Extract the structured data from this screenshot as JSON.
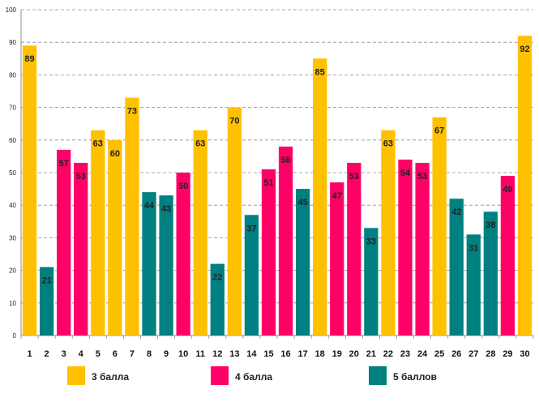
{
  "chart_data": {
    "type": "bar",
    "title": "",
    "xlabel": "",
    "ylabel": "",
    "ylim": [
      0,
      100
    ],
    "yticks": [
      0,
      10,
      20,
      30,
      40,
      50,
      60,
      70,
      80,
      90,
      100
    ],
    "grid": true,
    "legend_position": "bottom",
    "categories": [
      "1",
      "2",
      "3",
      "4",
      "5",
      "6",
      "7",
      "8",
      "9",
      "10",
      "11",
      "12",
      "13",
      "14",
      "15",
      "16",
      "17",
      "18",
      "19",
      "20",
      "21",
      "22",
      "23",
      "24",
      "25",
      "26",
      "27",
      "28",
      "29",
      "30"
    ],
    "values": [
      89,
      21,
      57,
      53,
      63,
      60,
      73,
      44,
      43,
      50,
      63,
      22,
      70,
      37,
      51,
      58,
      45,
      85,
      47,
      53,
      33,
      63,
      54,
      53,
      67,
      42,
      31,
      38,
      49,
      92
    ],
    "grades": [
      "3 балла",
      "5 баллов",
      "4 балла",
      "4 балла",
      "3 балла",
      "3 балла",
      "3 балла",
      "5 баллов",
      "5 баллов",
      "4 балла",
      "3 балла",
      "5 баллов",
      "3 балла",
      "5 баллов",
      "4 балла",
      "4 балла",
      "5 баллов",
      "3 балла",
      "4 балла",
      "4 балла",
      "5 баллов",
      "3 балла",
      "4 балла",
      "4 балла",
      "3 балла",
      "5 баллов",
      "5 баллов",
      "5 баллов",
      "4 балла",
      "3 балла"
    ],
    "series": [
      {
        "name": "3 балла",
        "color": "#FFC000"
      },
      {
        "name": "4 балла",
        "color": "#FF0066"
      },
      {
        "name": "5 баллов",
        "color": "#008080"
      }
    ]
  }
}
